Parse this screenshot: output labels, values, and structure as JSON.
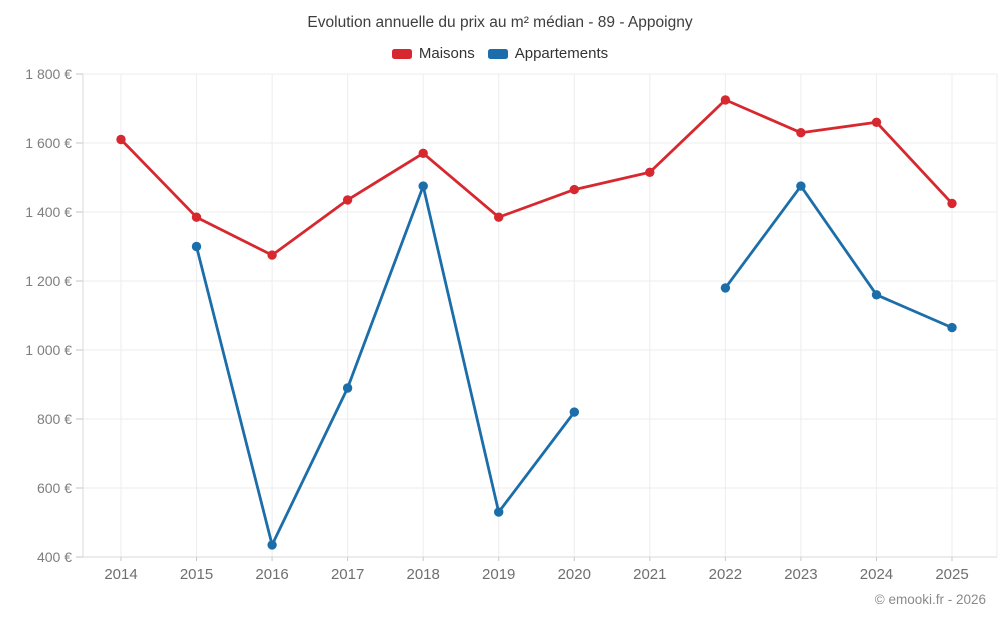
{
  "title": "Evolution annuelle du prix au m² médian - 89 - Appoigny",
  "footer": "© emooki.fr - 2026",
  "colors": {
    "maisons": "#d7282f",
    "appartements": "#1b6ea9",
    "grid": "#ededed",
    "axis": "#d8d8d8",
    "tick": "#c6c6c6"
  },
  "legend": [
    {
      "label": "Maisons",
      "color": "#d7282f"
    },
    {
      "label": "Appartements",
      "color": "#1b6ea9"
    }
  ],
  "chart_data": {
    "type": "line",
    "title": "Evolution annuelle du prix au m² médian - 89 - Appoigny",
    "categories": [
      2014,
      2015,
      2016,
      2017,
      2018,
      2019,
      2020,
      2021,
      2022,
      2023,
      2024,
      2025
    ],
    "series": [
      {
        "name": "Maisons",
        "color": "#d7282f",
        "values": [
          1610,
          1385,
          1275,
          1435,
          1570,
          1385,
          1465,
          1515,
          1725,
          1630,
          1660,
          1425
        ]
      },
      {
        "name": "Appartements",
        "color": "#1b6ea9",
        "values": [
          null,
          1300,
          435,
          890,
          1475,
          530,
          820,
          null,
          1180,
          1475,
          1160,
          1065
        ]
      }
    ],
    "ylim": [
      400,
      1800
    ],
    "y_ticks": [
      400,
      600,
      800,
      1000,
      1200,
      1400,
      1600,
      1800
    ],
    "y_tick_labels": [
      "400 €",
      "600 €",
      "800 €",
      "1 000 €",
      "1 200 €",
      "1 400 €",
      "1 600 €",
      "1 800 €"
    ],
    "xlabel": "",
    "ylabel": "",
    "grid": true,
    "legend_position": "top",
    "marker": "circle"
  }
}
